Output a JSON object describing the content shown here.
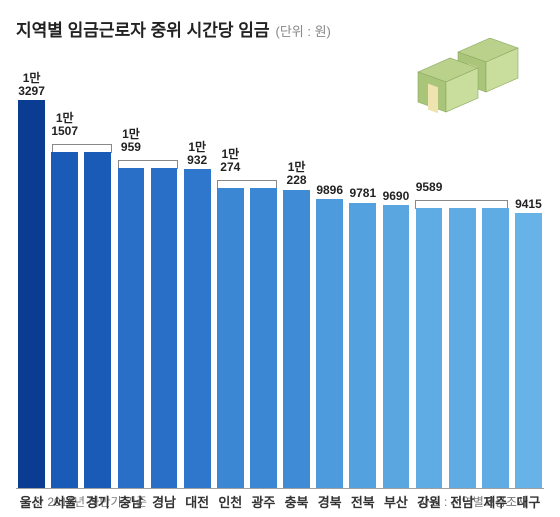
{
  "chart": {
    "type": "bar",
    "title": "지역별 임금근로자 중위 시간당 임금",
    "unit_label": "(단위 : 원)",
    "title_fontsize": 17,
    "unit_fontsize": 13,
    "unit_color": "#888888",
    "title_color": "#222222",
    "background_color": "#ffffff",
    "axis_color": "#a0a0a0",
    "categories": [
      "울산",
      "서울",
      "경기",
      "충남",
      "경남",
      "대전",
      "인천",
      "광주",
      "충북",
      "경북",
      "전북",
      "부산",
      "강원",
      "전남",
      "제주",
      "대구"
    ],
    "values": [
      13297,
      11507,
      11507,
      10959,
      10959,
      10932,
      10274,
      10274,
      10228,
      9896,
      9781,
      9690,
      9589,
      9589,
      9589,
      9415
    ],
    "display_labels": [
      "1만\n3297",
      "1만\n1507",
      "",
      "1만\n959",
      "",
      "1만\n932",
      "1만\n274",
      "",
      "1만\n228",
      "9896",
      "9781",
      "9690",
      "9589",
      "",
      "",
      "9415"
    ],
    "bar_colors": [
      "#0a3d91",
      "#1b5bb8",
      "#1b5bb8",
      "#2a6fc7",
      "#2a6fc7",
      "#2f77cc",
      "#3c87d4",
      "#3c87d4",
      "#3f8bd6",
      "#4d9adc",
      "#54a1df",
      "#59a6e1",
      "#5fabe3",
      "#5fabe3",
      "#5fabe3",
      "#67b2e6"
    ],
    "value_label_fontsize": 12,
    "value_label_color": "#222222",
    "category_label_fontsize": 13,
    "category_label_color": "#333333",
    "y_max": 13500,
    "y_min": 0,
    "bar_width": 0.86,
    "brackets": [
      {
        "from": 1,
        "to": 2
      },
      {
        "from": 3,
        "to": 4
      },
      {
        "from": 6,
        "to": 7
      },
      {
        "from": 12,
        "to": 14
      }
    ],
    "bracket_color": "#888888",
    "illustration": "money-stack-icon",
    "illustration_colors": {
      "bill": "#b9d18a",
      "band": "#efe4b0",
      "outline": "#8aa860"
    }
  },
  "footnote_left": "※ 2016년 하반기 기준",
  "footnote_right": "자료 : 지역별고용조사",
  "footnote_fontsize": 12,
  "footnote_color": "#777777"
}
